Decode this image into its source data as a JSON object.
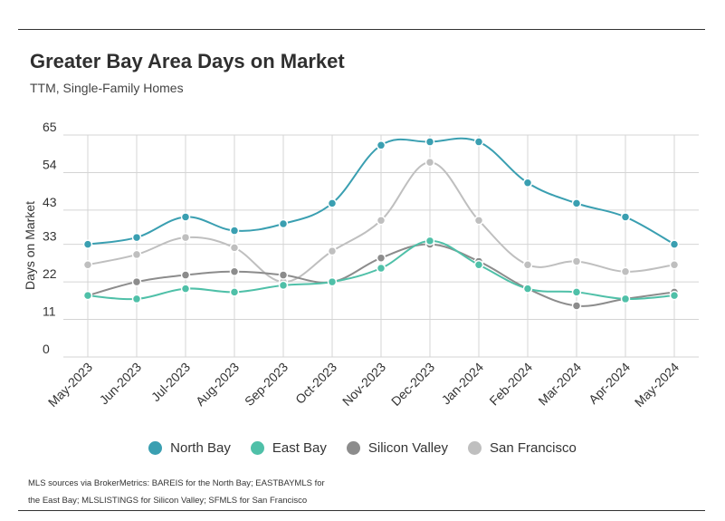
{
  "chart_data": {
    "type": "line",
    "title": "Greater Bay Area Days on Market",
    "subtitle": "TTM, Single-Family Homes",
    "xlabel": "",
    "ylabel": "Days on Market",
    "ylim": [
      0,
      65
    ],
    "yticks": [
      0,
      11,
      22,
      33,
      43,
      54,
      65
    ],
    "grid": true,
    "legend_position": "bottom",
    "categories": [
      "May-2023",
      "Jun-2023",
      "Jul-2023",
      "Aug-2023",
      "Sep-2023",
      "Oct-2023",
      "Nov-2023",
      "Dec-2023",
      "Jan-2024",
      "Feb-2024",
      "Mar-2024",
      "Apr-2024",
      "May-2024"
    ],
    "series": [
      {
        "name": "North Bay",
        "color": "#3a9fb1",
        "values": [
          33,
          35,
          41,
          37,
          39,
          45,
          62,
          63,
          63,
          51,
          45,
          41,
          33
        ]
      },
      {
        "name": "East Bay",
        "color": "#4fc0a8",
        "values": [
          18,
          17,
          20,
          19,
          21,
          22,
          26,
          34,
          27,
          20,
          19,
          17,
          18
        ]
      },
      {
        "name": "Silicon Valley",
        "color": "#8c8c8c",
        "values": [
          18,
          22,
          24,
          25,
          24,
          22,
          29,
          33,
          28,
          20,
          15,
          17,
          19
        ]
      },
      {
        "name": "San Francisco",
        "color": "#bfbfbf",
        "values": [
          27,
          30,
          35,
          32,
          22,
          31,
          40,
          57,
          40,
          27,
          28,
          25,
          27
        ]
      }
    ]
  },
  "footnote": "MLS sources via BrokerMetrics: BAREIS for the North Bay; EASTBAYMLS for the East Bay; MLSLISTINGS for Silicon Valley; SFMLS for San Francisco"
}
